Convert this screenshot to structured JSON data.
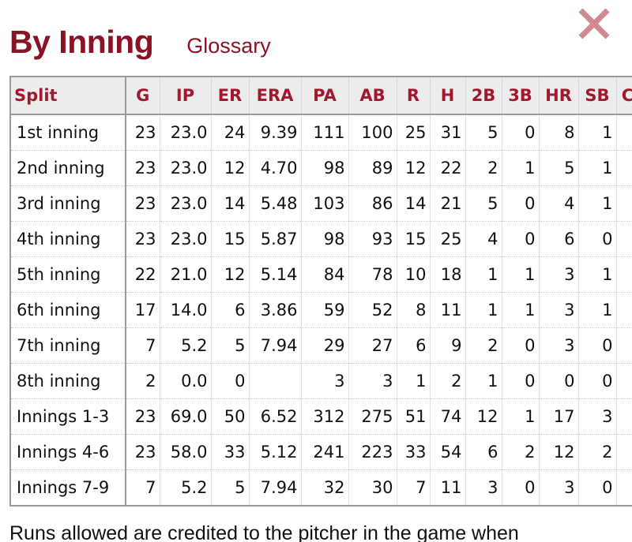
{
  "header": {
    "title": "By Inning",
    "glossary_link": "Glossary"
  },
  "close_button": {
    "icon": "close-icon",
    "color": "#d08a8f"
  },
  "colors": {
    "accent": "#8b1224",
    "header_text": "#a1192f",
    "header_bg": "#ececec"
  },
  "table": {
    "columns": [
      "Split",
      "G",
      "IP",
      "ER",
      "ERA",
      "PA",
      "AB",
      "R",
      "H",
      "2B",
      "3B",
      "HR",
      "SB",
      "C"
    ],
    "rows": [
      [
        "1st inning",
        "23",
        "23.0",
        "24",
        "9.39",
        "111",
        "100",
        "25",
        "31",
        "5",
        "0",
        "8",
        "1",
        ""
      ],
      [
        "2nd inning",
        "23",
        "23.0",
        "12",
        "4.70",
        "98",
        "89",
        "12",
        "22",
        "2",
        "1",
        "5",
        "1",
        ""
      ],
      [
        "3rd inning",
        "23",
        "23.0",
        "14",
        "5.48",
        "103",
        "86",
        "14",
        "21",
        "5",
        "0",
        "4",
        "1",
        ""
      ],
      [
        "4th inning",
        "23",
        "23.0",
        "15",
        "5.87",
        "98",
        "93",
        "15",
        "25",
        "4",
        "0",
        "6",
        "0",
        ""
      ],
      [
        "5th inning",
        "22",
        "21.0",
        "12",
        "5.14",
        "84",
        "78",
        "10",
        "18",
        "1",
        "1",
        "3",
        "1",
        ""
      ],
      [
        "6th inning",
        "17",
        "14.0",
        "6",
        "3.86",
        "59",
        "52",
        "8",
        "11",
        "1",
        "1",
        "3",
        "1",
        ""
      ],
      [
        "7th inning",
        "7",
        "5.2",
        "5",
        "7.94",
        "29",
        "27",
        "6",
        "9",
        "2",
        "0",
        "3",
        "0",
        ""
      ],
      [
        "8th inning",
        "2",
        "0.0",
        "0",
        "",
        "3",
        "3",
        "1",
        "2",
        "1",
        "0",
        "0",
        "0",
        ""
      ],
      [
        "Innings 1-3",
        "23",
        "69.0",
        "50",
        "6.52",
        "312",
        "275",
        "51",
        "74",
        "12",
        "1",
        "17",
        "3",
        ""
      ],
      [
        "Innings 4-6",
        "23",
        "58.0",
        "33",
        "5.12",
        "241",
        "223",
        "33",
        "54",
        "6",
        "2",
        "12",
        "2",
        ""
      ],
      [
        "Innings 7-9",
        "7",
        "5.2",
        "5",
        "7.94",
        "32",
        "30",
        "7",
        "11",
        "3",
        "0",
        "3",
        "0",
        ""
      ]
    ]
  },
  "footnote": "Runs allowed are credited to the pitcher in the game when"
}
